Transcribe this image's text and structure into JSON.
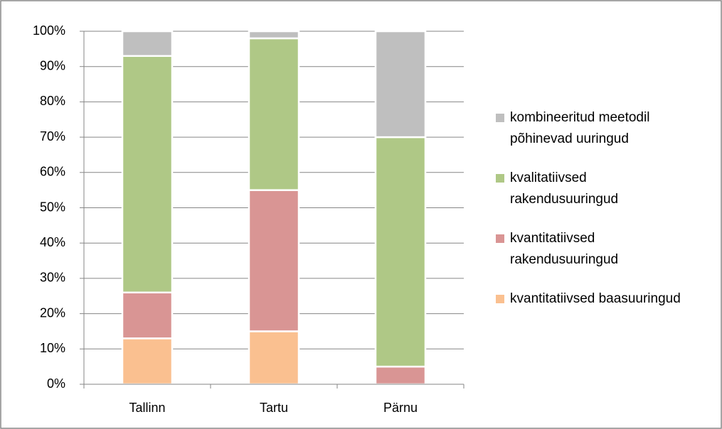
{
  "chart_data": {
    "type": "bar",
    "stacked": true,
    "categories": [
      "Tallinn",
      "Tartu",
      "Pärnu"
    ],
    "series": [
      {
        "name": "kvantitatiivsed baasuuringud",
        "color": "#fac090",
        "values": [
          13,
          15,
          0
        ]
      },
      {
        "name": "kvantitatiivsed rakendusuuringud",
        "color": "#d99594",
        "values": [
          13,
          40,
          5
        ]
      },
      {
        "name": "kvalitatiivsed rakendusuuringud",
        "color": "#afc886",
        "values": [
          67,
          43,
          65
        ]
      },
      {
        "name": "kombineeritud meetodil põhinevad uuringud",
        "color": "#bfbfbf",
        "values": [
          7,
          2,
          30
        ]
      }
    ],
    "ylim": [
      0,
      100
    ],
    "yticks": [
      {
        "value": 0,
        "label": "0%"
      },
      {
        "value": 10,
        "label": "10%"
      },
      {
        "value": 20,
        "label": "20%"
      },
      {
        "value": 30,
        "label": "30%"
      },
      {
        "value": 40,
        "label": "40%"
      },
      {
        "value": 50,
        "label": "50%"
      },
      {
        "value": 60,
        "label": "60%"
      },
      {
        "value": 70,
        "label": "70%"
      },
      {
        "value": 80,
        "label": "80%"
      },
      {
        "value": 90,
        "label": "90%"
      },
      {
        "value": 100,
        "label": "100%"
      }
    ],
    "grid": true,
    "legend": "right"
  }
}
